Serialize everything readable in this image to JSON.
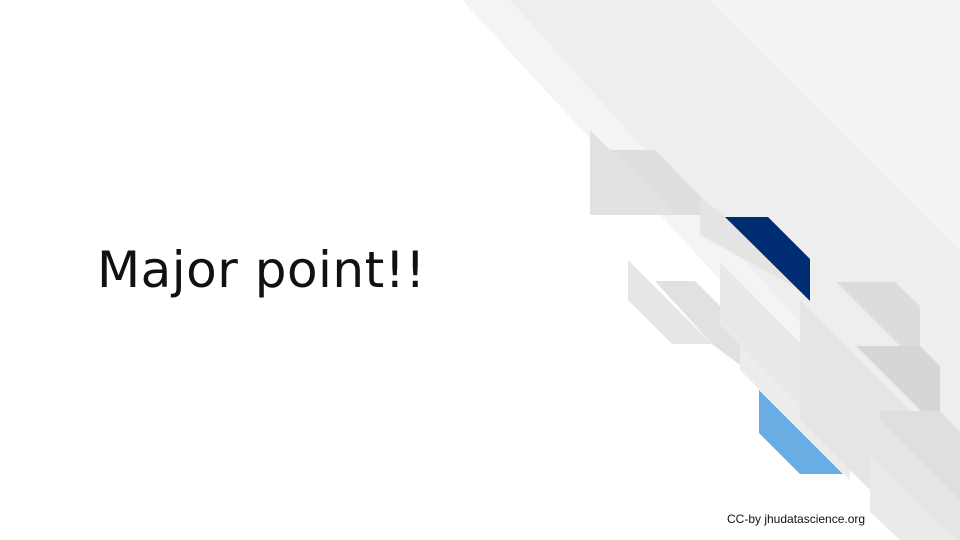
{
  "slide": {
    "title": "Major point!!",
    "credit": "CC-by jhudatascience.org"
  },
  "colors": {
    "background": "#ffffff",
    "stripe_light": "#f3f3f3",
    "stripe_mid": "#ececec",
    "tile_gray": "#e6e6e6",
    "tile_gray_dark": "#d9d9d9",
    "accent_navy": "#002d72",
    "accent_blue": "#6aade4",
    "text": "#111111"
  }
}
